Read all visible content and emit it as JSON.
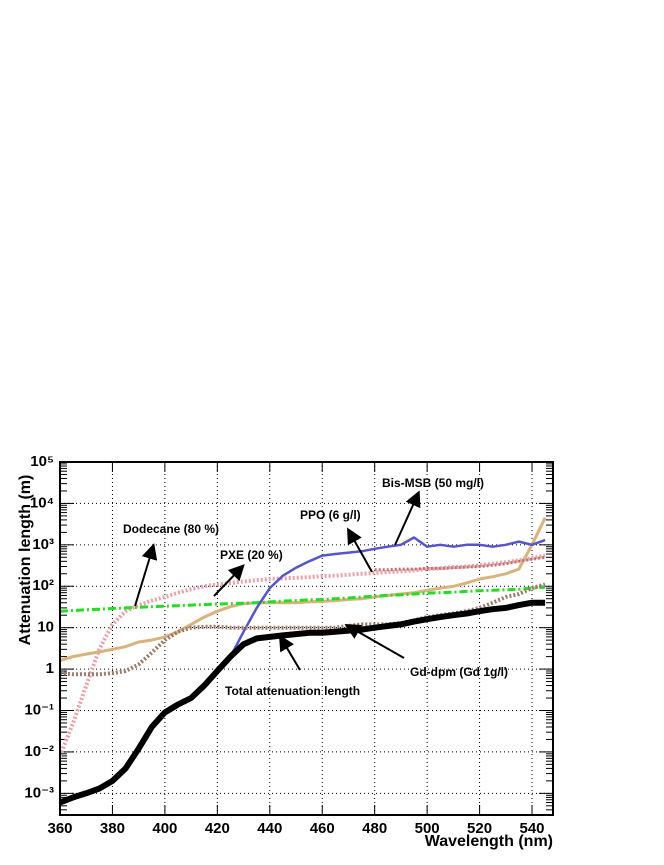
{
  "chart_data": {
    "type": "line",
    "x_label": "Wavelength (nm)",
    "y_label": "Attenuation length (m)",
    "x": [
      360,
      365,
      370,
      375,
      380,
      385,
      390,
      395,
      400,
      405,
      410,
      415,
      420,
      425,
      430,
      435,
      440,
      445,
      450,
      455,
      460,
      465,
      470,
      475,
      480,
      485,
      490,
      495,
      500,
      505,
      510,
      515,
      520,
      525,
      530,
      535,
      540,
      545
    ],
    "xlim": [
      360,
      548
    ],
    "xticks": [
      360,
      380,
      400,
      420,
      440,
      460,
      480,
      500,
      520,
      540
    ],
    "log_y": true,
    "ylim": [
      0.0003,
      100000
    ],
    "yticks": [
      {
        "value": 0.001,
        "label": "10⁻³"
      },
      {
        "value": 0.01,
        "label": "10⁻²"
      },
      {
        "value": 0.1,
        "label": "10⁻¹"
      },
      1,
      10,
      {
        "value": 100,
        "label": "10²"
      },
      {
        "value": 1000,
        "label": "10³"
      },
      {
        "value": 10000,
        "label": "10⁴"
      },
      {
        "value": 100000,
        "label": "10⁵"
      }
    ],
    "grid": true,
    "series": [
      {
        "color": "#e8a0a8",
        "style": "dotted",
        "linewidth": 4,
        "values": [
          0.008,
          0.05,
          0.4,
          3,
          12,
          25,
          35,
          45,
          55,
          70,
          85,
          100,
          110,
          120,
          130,
          140,
          150,
          155,
          160,
          165,
          175,
          180,
          190,
          200,
          210,
          220,
          230,
          240,
          260,
          270,
          290,
          300,
          320,
          350,
          380,
          420,
          480,
          550
        ]
      },
      {
        "color": "#d9b27c",
        "style": "solid",
        "linewidth": 3,
        "values": [
          1.6,
          2,
          2.3,
          2.6,
          3,
          3.5,
          4.5,
          5,
          6,
          8,
          12,
          18,
          25,
          32,
          38,
          40,
          40,
          40,
          40,
          42,
          43,
          45,
          48,
          50,
          55,
          60,
          65,
          70,
          80,
          90,
          100,
          120,
          150,
          170,
          200,
          260,
          1000,
          4500
        ]
      },
      {
        "color": "#22dd22",
        "style": "dash-dot",
        "linewidth": 3,
        "values": [
          25,
          26,
          27,
          28,
          29,
          30,
          31,
          32,
          33,
          34,
          35,
          36,
          37,
          38,
          39,
          40,
          42,
          44,
          45,
          47,
          48,
          50,
          52,
          55,
          58,
          60,
          62,
          65,
          68,
          70,
          72,
          75,
          78,
          80,
          82,
          85,
          90,
          95
        ]
      },
      {
        "color": "#c07070",
        "style": "dotted",
        "linewidth": 3,
        "values": [
          null,
          null,
          null,
          null,
          null,
          null,
          null,
          null,
          null,
          null,
          null,
          null,
          null,
          null,
          null,
          null,
          null,
          null,
          null,
          null,
          null,
          null,
          null,
          null,
          250,
          250,
          260,
          260,
          270,
          270,
          280,
          290,
          300,
          320,
          350,
          400,
          450,
          500
        ]
      },
      {
        "color": "#5555cc",
        "style": "solid",
        "linewidth": 2.5,
        "values": [
          null,
          null,
          null,
          null,
          null,
          null,
          null,
          null,
          null,
          null,
          null,
          null,
          0.9,
          2,
          8,
          30,
          90,
          180,
          280,
          400,
          550,
          600,
          650,
          700,
          800,
          900,
          1000,
          1500,
          900,
          1000,
          900,
          1000,
          1000,
          900,
          1000,
          1200,
          1000,
          1300
        ]
      },
      {
        "color": "#9a7a6a",
        "style": "dotted",
        "linewidth": 4,
        "values": [
          0.8,
          0.75,
          0.75,
          0.75,
          0.8,
          0.9,
          1.3,
          2.5,
          5,
          8,
          10,
          10.5,
          10.5,
          10,
          10,
          10,
          10,
          10,
          10,
          10,
          10,
          10,
          11,
          12,
          12,
          12,
          13,
          15,
          18,
          20,
          22,
          25,
          30,
          40,
          55,
          65,
          90,
          110
        ]
      },
      {
        "color": "#000000",
        "style": "solid",
        "linewidth": 6,
        "values": [
          0.0006,
          0.0008,
          0.001,
          0.0013,
          0.002,
          0.004,
          0.012,
          0.04,
          0.09,
          0.14,
          0.2,
          0.4,
          0.9,
          2,
          4,
          5.5,
          6,
          6.5,
          7,
          7.5,
          7.5,
          8,
          8.5,
          9,
          10,
          11,
          12,
          14,
          16,
          18,
          20,
          22,
          25,
          28,
          30,
          35,
          40,
          40
        ]
      }
    ],
    "annotations": [
      "Dodecane (80 %)",
      "PXE (20 %)",
      "PPO (6 g/l)",
      "Bis-MSB (50 mg/l)",
      "Gd-dpm (Gd 1g/l)",
      "Total attenuation length"
    ]
  }
}
